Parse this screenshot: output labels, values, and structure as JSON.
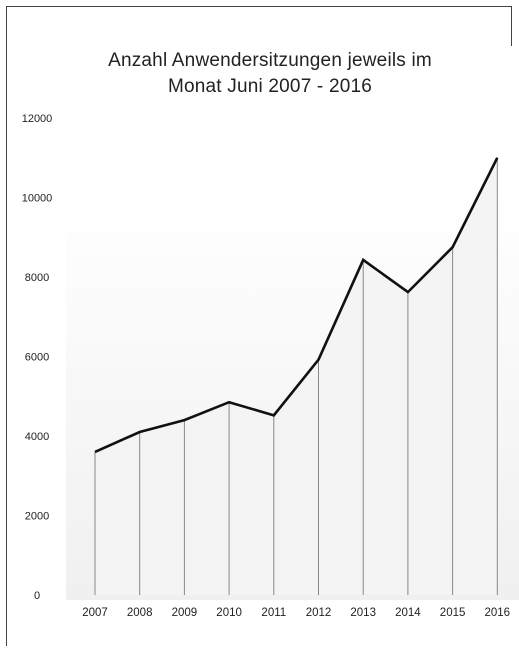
{
  "chart_data": {
    "type": "area",
    "title": "Anzahl Anwendersitzungen jeweils im Monat Juni 2007 - 2016",
    "title_lines": [
      "Anzahl Anwendersitzungen jeweils im",
      "Monat Juni 2007 - 2016"
    ],
    "xlabel": "",
    "ylabel": "",
    "categories": [
      "2007",
      "2008",
      "2009",
      "2010",
      "2011",
      "2012",
      "2013",
      "2014",
      "2015",
      "2016"
    ],
    "values": [
      3600,
      4100,
      4400,
      4850,
      4520,
      5920,
      8430,
      7620,
      8750,
      11000
    ],
    "ylim": [
      0,
      12000
    ],
    "yticks": [
      "0",
      "2000",
      "4000",
      "6000",
      "8000",
      "10000",
      "12000"
    ],
    "grid": false,
    "line_color": "#111111",
    "fill_color": "#f4f4f4",
    "drop_line_color": "#888888"
  }
}
